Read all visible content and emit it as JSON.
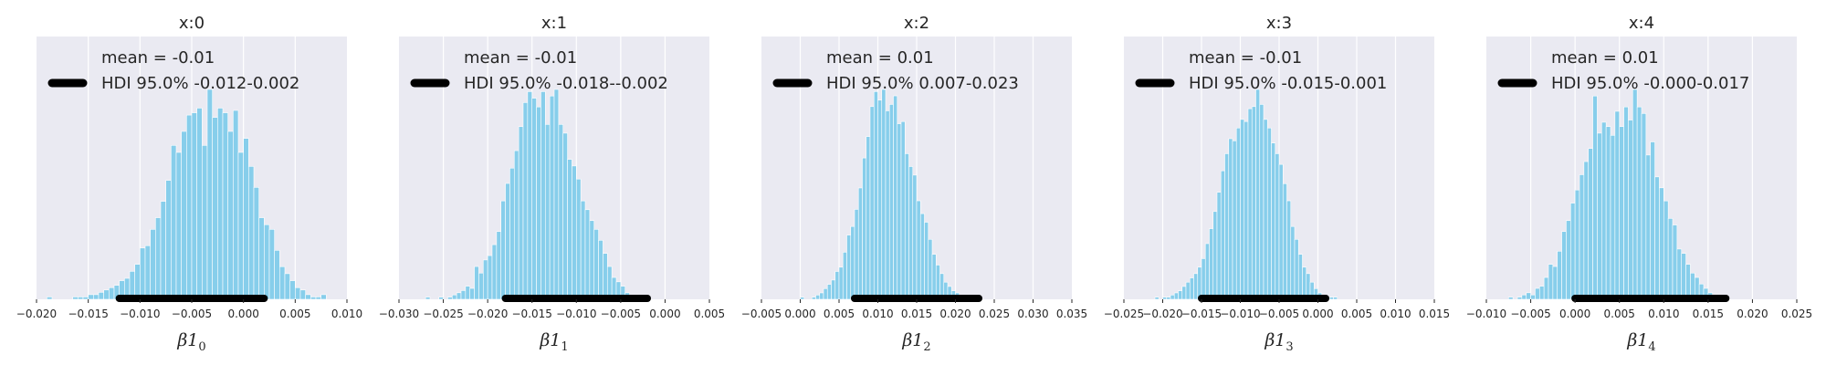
{
  "colors": {
    "background": "#eaeaf2",
    "grid": "#ffffff",
    "bars": "#87ceeb",
    "bar_edge": "#ffffff",
    "hdi_line": "#000000",
    "text": "#262626"
  },
  "chart_data": [
    {
      "type": "bar",
      "title": "x:0",
      "legend": {
        "mean": "mean = -0.01",
        "hdi": "HDI 95.0% -0.012-0.002",
        "placement": "top-left"
      },
      "xlabel": {
        "base": "β1",
        "sub": "0"
      },
      "xlim": [
        -0.02,
        0.01
      ],
      "xticks": [
        -0.02,
        -0.015,
        -0.01,
        -0.005,
        0.0,
        0.005,
        0.01
      ],
      "xtick_labels": [
        "−0.020",
        "−0.015",
        "−0.010",
        "−0.005",
        "0.000",
        "0.005",
        "0.010"
      ],
      "grid": true,
      "hdi": [
        -0.012,
        0.002
      ],
      "hist": {
        "start": -0.019,
        "width": 0.0005,
        "counts": [
          1,
          0,
          0,
          0,
          0,
          1,
          1,
          1,
          2,
          2,
          3,
          4,
          5,
          6,
          8,
          9,
          12,
          15,
          22,
          23,
          30,
          35,
          42,
          51,
          66,
          63,
          72,
          79,
          80,
          82,
          66,
          90,
          78,
          82,
          80,
          72,
          81,
          63,
          69,
          57,
          48,
          35,
          32,
          30,
          21,
          14,
          11,
          8,
          5,
          4,
          2,
          1,
          1,
          2
        ]
      }
    },
    {
      "type": "bar",
      "title": "x:1",
      "legend": {
        "mean": "mean = -0.01",
        "hdi": "HDI 95.0% -0.018--0.002",
        "placement": "top-left"
      },
      "xlabel": {
        "base": "β1",
        "sub": "1"
      },
      "xlim": [
        -0.03,
        0.005
      ],
      "xticks": [
        -0.03,
        -0.025,
        -0.02,
        -0.015,
        -0.01,
        -0.005,
        0.0,
        0.005
      ],
      "xtick_labels": [
        "−0.030",
        "−0.025",
        "−0.020",
        "−0.015",
        "−0.010",
        "−0.005",
        "0.000",
        "0.005"
      ],
      "grid": true,
      "hdi": [
        -0.018,
        -0.002
      ],
      "hist": {
        "start": -0.027,
        "width": 0.0005,
        "counts": [
          1,
          0,
          0,
          1,
          0,
          1,
          2,
          3,
          4,
          6,
          5,
          15,
          12,
          18,
          20,
          25,
          31,
          45,
          53,
          60,
          68,
          79,
          90,
          95,
          92,
          88,
          95,
          80,
          93,
          96,
          80,
          76,
          64,
          61,
          55,
          45,
          41,
          36,
          32,
          27,
          21,
          15,
          10,
          8,
          6,
          3,
          2,
          2,
          1,
          1
        ]
      }
    },
    {
      "type": "bar",
      "title": "x:2",
      "legend": {
        "mean": "mean = 0.01",
        "hdi": "HDI 95.0% 0.007-0.023",
        "placement": "top-left"
      },
      "xlabel": {
        "base": "β1",
        "sub": "2"
      },
      "xlim": [
        -0.005,
        0.035
      ],
      "xticks": [
        -0.005,
        0.0,
        0.005,
        0.01,
        0.015,
        0.02,
        0.025,
        0.03,
        0.035
      ],
      "xtick_labels": [
        "−0.005",
        "0.000",
        "0.005",
        "0.010",
        "0.015",
        "0.020",
        "0.025",
        "0.030",
        "0.035"
      ],
      "grid": true,
      "hdi": [
        0.007,
        0.023
      ],
      "hist": {
        "start": 0.0,
        "width": 0.0005,
        "counts": [
          1,
          0,
          0,
          1,
          2,
          3,
          5,
          7,
          9,
          13,
          15,
          22,
          30,
          34,
          42,
          52,
          66,
          76,
          90,
          97,
          93,
          98,
          88,
          91,
          95,
          82,
          83,
          68,
          62,
          58,
          46,
          40,
          36,
          28,
          21,
          16,
          12,
          8,
          6,
          4,
          3,
          2,
          1,
          1,
          1
        ]
      }
    },
    {
      "type": "bar",
      "title": "x:3",
      "legend": {
        "mean": "mean = -0.01",
        "hdi": "HDI 95.0% -0.015-0.001",
        "placement": "top-left"
      },
      "xlabel": {
        "base": "β1",
        "sub": "3"
      },
      "xlim": [
        -0.025,
        0.015
      ],
      "xticks": [
        -0.025,
        -0.02,
        -0.015,
        -0.01,
        -0.005,
        0.0,
        0.005,
        0.01,
        0.015
      ],
      "xtick_labels": [
        "−0.025",
        "−0.020",
        "−0.015",
        "−0.010",
        "−0.005",
        "0.000",
        "0.005",
        "0.010",
        "0.015"
      ],
      "grid": true,
      "hdi": [
        -0.015,
        0.001
      ],
      "hist": {
        "start": -0.021,
        "width": 0.0005,
        "counts": [
          1,
          0,
          1,
          1,
          2,
          3,
          4,
          6,
          8,
          10,
          12,
          15,
          19,
          26,
          33,
          41,
          50,
          60,
          68,
          75,
          74,
          80,
          84,
          83,
          89,
          90,
          98,
          91,
          84,
          80,
          73,
          68,
          63,
          54,
          46,
          34,
          28,
          21,
          15,
          12,
          8,
          5,
          3,
          2,
          1,
          1,
          1
        ]
      }
    },
    {
      "type": "bar",
      "title": "x:4",
      "legend": {
        "mean": "mean = 0.01",
        "hdi": "HDI 95.0% -0.000-0.017",
        "placement": "top-left"
      },
      "xlabel": {
        "base": "β1",
        "sub": "4"
      },
      "xlim": [
        -0.01,
        0.025
      ],
      "xticks": [
        -0.01,
        -0.005,
        0.0,
        0.005,
        0.01,
        0.015,
        0.02,
        0.025
      ],
      "xtick_labels": [
        "−0.010",
        "−0.005",
        "0.000",
        "0.005",
        "0.010",
        "0.015",
        "0.020",
        "0.025"
      ],
      "grid": true,
      "hdi": [
        0.0,
        0.017
      ],
      "hist": {
        "start": -0.0075,
        "width": 0.0005,
        "counts": [
          1,
          0,
          1,
          2,
          3,
          2,
          5,
          6,
          10,
          16,
          15,
          22,
          31,
          36,
          44,
          50,
          57,
          63,
          69,
          93,
          76,
          81,
          79,
          75,
          86,
          79,
          88,
          82,
          96,
          88,
          85,
          66,
          72,
          56,
          51,
          45,
          37,
          34,
          23,
          21,
          16,
          12,
          10,
          7,
          5,
          3,
          2,
          1,
          1
        ]
      }
    }
  ]
}
